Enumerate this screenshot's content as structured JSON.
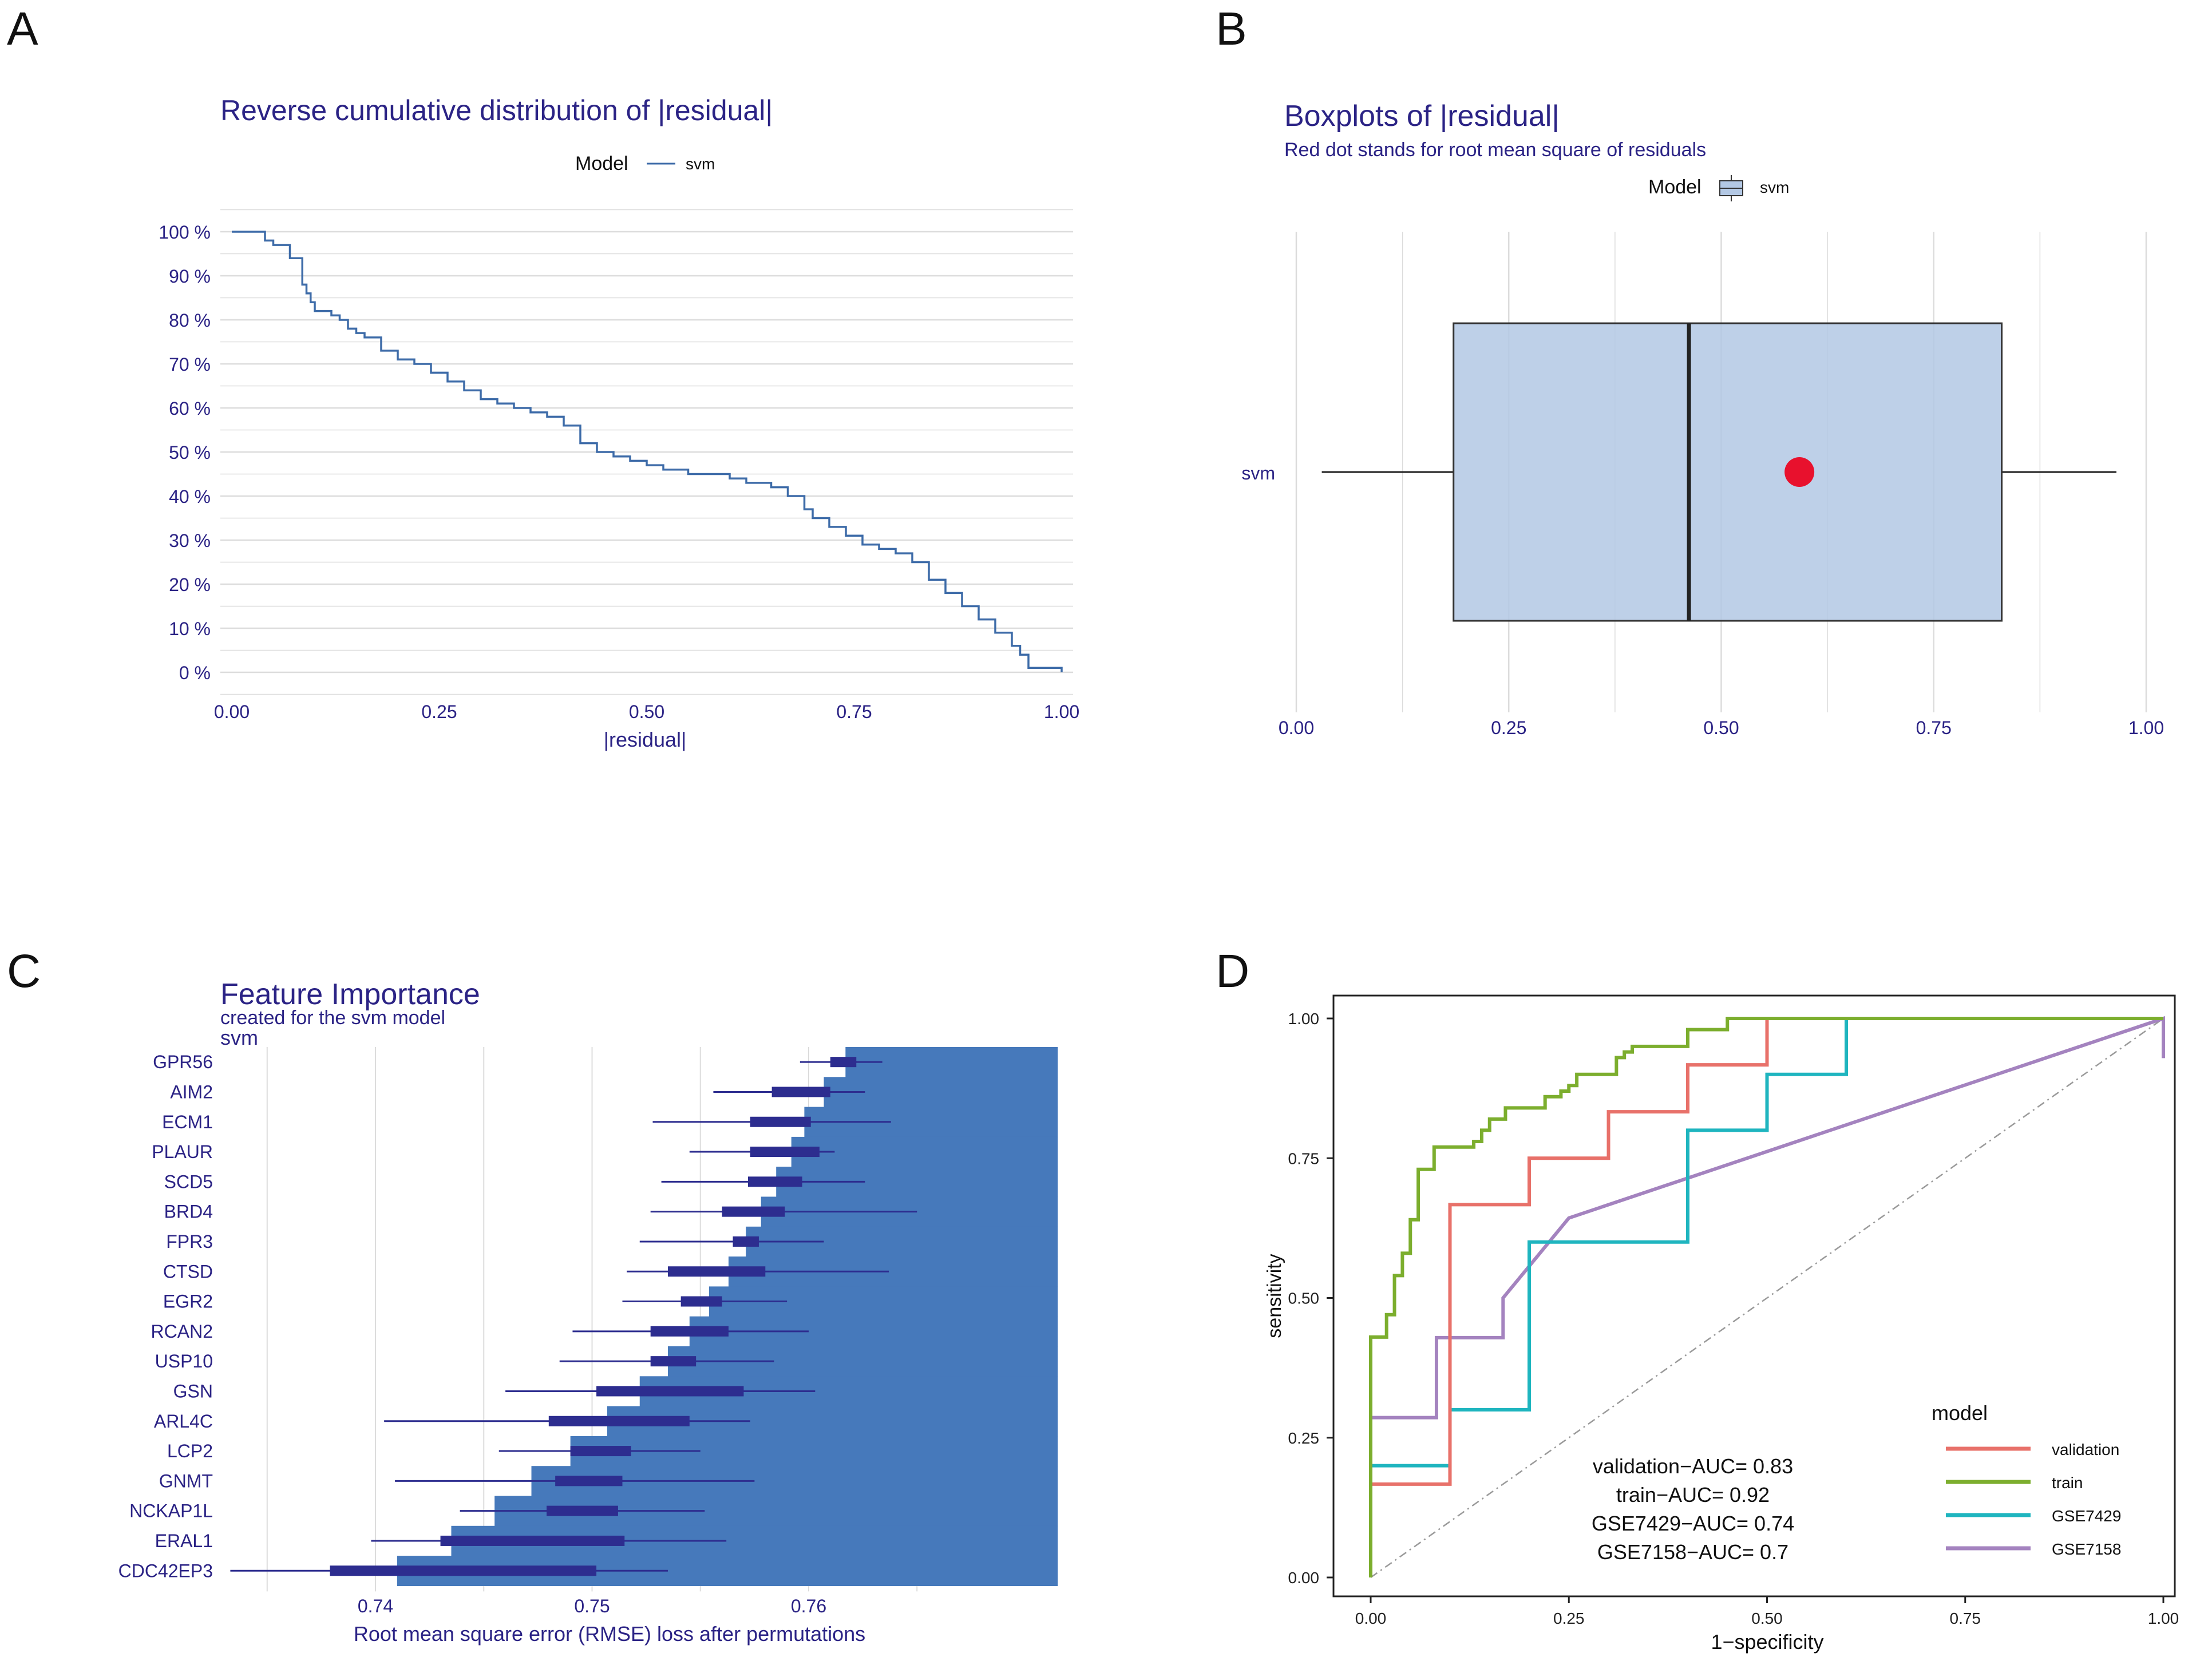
{
  "panels": {
    "A": {
      "letter": "A"
    },
    "B": {
      "letter": "B"
    },
    "C": {
      "letter": "C"
    },
    "D": {
      "letter": "D"
    }
  },
  "colors": {
    "navy": "#2B2385",
    "svm_line": "#3D6BA8",
    "box_fill": "#B3C8E4",
    "rms_dot": "#E8112D",
    "bar_fill": "#4679BB",
    "bar_box": "#2D2D8F",
    "grid": "#DCDCDC",
    "validation": "#E8716A",
    "train": "#7CAE2E",
    "GSE7429": "#1FB5BF",
    "GSE7158": "#A483BF",
    "diagonal": "#9A9A9A"
  },
  "chart_data": [
    {
      "id": "A",
      "type": "line",
      "title": "Reverse cumulative distribution of |residual|",
      "legend": {
        "title": "Model",
        "entries": [
          "svm"
        ],
        "position": "top"
      },
      "xlabel": "|residual|",
      "ylabel": "",
      "xlim": [
        0,
        1
      ],
      "ylim": [
        0,
        100
      ],
      "x_ticks": [
        "0.00",
        "0.25",
        "0.50",
        "0.75",
        "1.00"
      ],
      "y_ticks": [
        "0 %",
        "10 %",
        "20 %",
        "30 %",
        "40 %",
        "50 %",
        "60 %",
        "70 %",
        "80 %",
        "90 %",
        "100 %"
      ],
      "series": [
        {
          "name": "svm",
          "x": [
            0,
            0.04,
            0.05,
            0.07,
            0.085,
            0.09,
            0.095,
            0.1,
            0.12,
            0.13,
            0.14,
            0.15,
            0.16,
            0.18,
            0.2,
            0.22,
            0.24,
            0.26,
            0.28,
            0.3,
            0.32,
            0.34,
            0.36,
            0.38,
            0.4,
            0.42,
            0.44,
            0.46,
            0.48,
            0.5,
            0.52,
            0.55,
            0.6,
            0.62,
            0.65,
            0.67,
            0.69,
            0.7,
            0.72,
            0.74,
            0.76,
            0.78,
            0.8,
            0.82,
            0.84,
            0.86,
            0.88,
            0.9,
            0.92,
            0.94,
            0.95,
            0.96,
            1.0
          ],
          "y": [
            100,
            98,
            97,
            94,
            88,
            86,
            84,
            82,
            81,
            80,
            78,
            77,
            76,
            73,
            71,
            70,
            68,
            66,
            64,
            62,
            61,
            60,
            59,
            58,
            56,
            52,
            50,
            49,
            48,
            47,
            46,
            45,
            44,
            43,
            42,
            40,
            37,
            35,
            33,
            31,
            29,
            28,
            27,
            25,
            21,
            18,
            15,
            12,
            9,
            6,
            4,
            1,
            0
          ]
        }
      ]
    },
    {
      "id": "B",
      "type": "box",
      "title": "Boxplots of |residual|",
      "subtitle": "Red dot stands for root mean square of residuals",
      "legend": {
        "title": "Model",
        "entries": [
          "svm"
        ],
        "position": "top"
      },
      "category": "svm",
      "xlim": [
        0,
        1
      ],
      "x_ticks": [
        "0.00",
        "0.25",
        "0.50",
        "0.75",
        "1.00"
      ],
      "whisker_low": 0.03,
      "q1": 0.185,
      "median": 0.462,
      "q3": 0.83,
      "whisker_high": 0.965,
      "rms": 0.592
    },
    {
      "id": "C",
      "type": "bar",
      "title": "Feature Importance",
      "subtitle": "created for the svm model",
      "model_label": "svm",
      "xlabel": "Root mean square error (RMSE) loss after permutations",
      "xlim": [
        0.7335,
        0.773
      ],
      "x_ticks": [
        "0.74",
        "0.75",
        "0.76"
      ],
      "baseline": 0.7715,
      "categories": [
        "GPR56",
        "AIM2",
        "ECM1",
        "PLAUR",
        "SCD5",
        "BRD4",
        "FPR3",
        "CTSD",
        "EGR2",
        "RCAN2",
        "USP10",
        "GSN",
        "ARL4C",
        "LCP2",
        "GNMT",
        "NCKAP1L",
        "ERAL1",
        "CDC42EP3"
      ],
      "values": [
        0.7617,
        0.7607,
        0.7598,
        0.7592,
        0.7585,
        0.7578,
        0.7571,
        0.7563,
        0.7554,
        0.7545,
        0.7535,
        0.7522,
        0.7507,
        0.749,
        0.7472,
        0.7455,
        0.7435,
        0.741
      ],
      "box_q1": [
        0.761,
        0.7583,
        0.7573,
        0.7573,
        0.7572,
        0.756,
        0.7565,
        0.7535,
        0.7541,
        0.7527,
        0.7527,
        0.7502,
        0.748,
        0.749,
        0.7483,
        0.7479,
        0.743,
        0.7379
      ],
      "box_q3": [
        0.7622,
        0.761,
        0.7601,
        0.7605,
        0.7597,
        0.7589,
        0.7577,
        0.758,
        0.756,
        0.7563,
        0.7548,
        0.757,
        0.7545,
        0.7518,
        0.7514,
        0.7512,
        0.7515,
        0.7502
      ],
      "whisker_low": [
        0.7596,
        0.7556,
        0.7528,
        0.7545,
        0.7532,
        0.7527,
        0.7522,
        0.7516,
        0.7514,
        0.7491,
        0.7485,
        0.746,
        0.7404,
        0.7457,
        0.7409,
        0.7439,
        0.7398,
        0.7333
      ],
      "whisker_high": [
        0.7634,
        0.7626,
        0.7638,
        0.7612,
        0.7626,
        0.765,
        0.7607,
        0.7637,
        0.759,
        0.76,
        0.7584,
        0.7603,
        0.7573,
        0.755,
        0.7575,
        0.7552,
        0.7562,
        0.7535
      ]
    },
    {
      "id": "D",
      "type": "line",
      "title": "",
      "xlabel": "1−specificity",
      "ylabel": "sensitivity",
      "xlim": [
        0,
        1
      ],
      "ylim": [
        0,
        1
      ],
      "x_ticks": [
        "0.00",
        "0.25",
        "0.50",
        "0.75",
        "1.00"
      ],
      "y_ticks": [
        "0.00",
        "0.25",
        "0.50",
        "0.75",
        "1.00"
      ],
      "legend": {
        "title": "model",
        "entries": [
          "validation",
          "train",
          "GSE7429",
          "GSE7158"
        ],
        "position": "bottom-right"
      },
      "annotations": [
        "validation−AUC= 0.83",
        "train−AUC= 0.92",
        "GSE7429−AUC= 0.74",
        "GSE7158−AUC= 0.7"
      ],
      "series": [
        {
          "name": "validation",
          "x": [
            0,
            0,
            0.1,
            0.1,
            0.2,
            0.2,
            0.3,
            0.3,
            0.4,
            0.4,
            0.5,
            0.5,
            1.0
          ],
          "y": [
            0,
            0.167,
            0.167,
            0.667,
            0.667,
            0.75,
            0.75,
            0.833,
            0.833,
            0.917,
            0.917,
            1.0,
            1.0
          ]
        },
        {
          "name": "train",
          "x": [
            0,
            0,
            0.01,
            0.01,
            0.02,
            0.02,
            0.03,
            0.03,
            0.04,
            0.04,
            0.05,
            0.05,
            0.06,
            0.06,
            0.07,
            0.07,
            0.08,
            0.08,
            0.13,
            0.13,
            0.14,
            0.14,
            0.15,
            0.15,
            0.17,
            0.17,
            0.22,
            0.22,
            0.24,
            0.24,
            0.25,
            0.25,
            0.26,
            0.26,
            0.31,
            0.31,
            0.32,
            0.32,
            0.33,
            0.33,
            0.4,
            0.4,
            0.45,
            0.45,
            0.6,
            1.0
          ],
          "y": [
            0,
            0.43,
            0.43,
            0.43,
            0.43,
            0.47,
            0.47,
            0.54,
            0.54,
            0.58,
            0.58,
            0.64,
            0.64,
            0.73,
            0.73,
            0.73,
            0.73,
            0.77,
            0.77,
            0.78,
            0.78,
            0.8,
            0.8,
            0.82,
            0.82,
            0.84,
            0.84,
            0.86,
            0.86,
            0.87,
            0.87,
            0.88,
            0.88,
            0.9,
            0.9,
            0.93,
            0.93,
            0.94,
            0.94,
            0.95,
            0.95,
            0.98,
            0.98,
            1.0,
            1.0,
            1.0
          ]
        },
        {
          "name": "GSE7429",
          "x": [
            0,
            0,
            0.1,
            0.1,
            0.2,
            0.2,
            0.4,
            0.4,
            0.5,
            0.5,
            0.6,
            0.6,
            1.0
          ],
          "y": [
            0,
            0.2,
            0.2,
            0.3,
            0.3,
            0.6,
            0.6,
            0.8,
            0.8,
            0.9,
            0.9,
            1.0,
            1.0
          ]
        },
        {
          "name": "GSE7158",
          "x": [
            0,
            0,
            0.083,
            0.083,
            0.167,
            0.167,
            0.25,
            1.0,
            1.0
          ],
          "y": [
            0,
            0.286,
            0.286,
            0.429,
            0.429,
            0.5,
            0.643,
            1.0,
            0.929
          ]
        },
        {
          "name": "diagonal",
          "x": [
            0,
            1
          ],
          "y": [
            0,
            1
          ]
        }
      ]
    }
  ]
}
